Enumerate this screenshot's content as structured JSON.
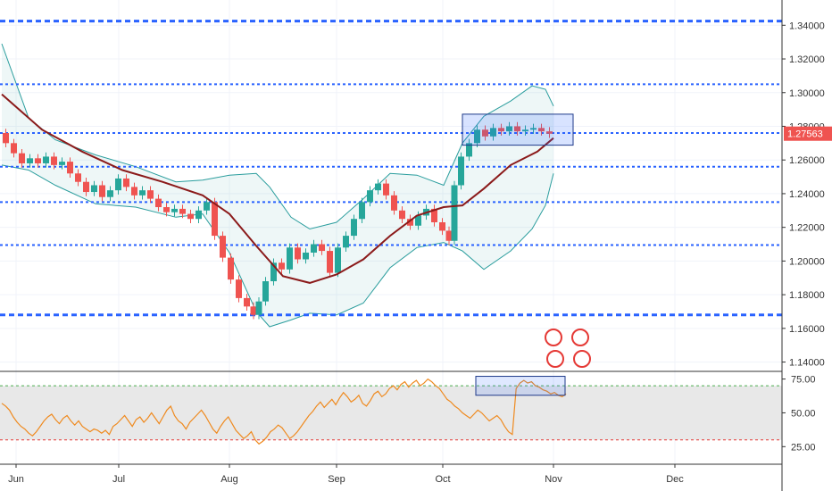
{
  "chart_data": [
    {
      "type": "candlestick",
      "title": "",
      "xlabel": "",
      "ylabel": "",
      "ylim": [
        1.135,
        1.355
      ],
      "x_ticks": [
        "Jun",
        "Jul",
        "Aug",
        "Sep",
        "Oct",
        "Nov",
        "Dec"
      ],
      "y_ticks": [
        "1.34000",
        "1.32000",
        "1.30000",
        "1.28000",
        "1.26000",
        "1.24000",
        "1.22000",
        "1.20000",
        "1.18000",
        "1.16000",
        "1.14000"
      ],
      "last_price": "1.27563",
      "indicators": [
        "Bollinger Bands",
        "Moving Average"
      ],
      "horizontal_levels": [
        1.3425,
        1.305,
        1.276,
        1.256,
        1.235,
        1.2095,
        1.168
      ],
      "series": [
        {
          "name": "",
          "kind": "close",
          "points": [
            [
              0,
              1.276
            ],
            [
              3,
              1.27
            ],
            [
              6,
              1.264
            ],
            [
              9,
              1.258
            ],
            [
              12,
              1.261
            ],
            [
              15,
              1.258
            ],
            [
              18,
              1.262
            ],
            [
              21,
              1.257
            ],
            [
              24,
              1.259
            ],
            [
              27,
              1.252
            ],
            [
              30,
              1.247
            ],
            [
              33,
              1.241
            ],
            [
              36,
              1.245
            ],
            [
              39,
              1.238
            ],
            [
              42,
              1.242
            ],
            [
              45,
              1.249
            ],
            [
              48,
              1.244
            ],
            [
              51,
              1.239
            ],
            [
              54,
              1.242
            ],
            [
              57,
              1.237
            ],
            [
              60,
              1.232
            ],
            [
              63,
              1.229
            ],
            [
              66,
              1.231
            ],
            [
              69,
              1.228
            ],
            [
              72,
              1.225
            ],
            [
              75,
              1.23
            ],
            [
              78,
              1.235
            ],
            [
              81,
              1.215
            ],
            [
              84,
              1.202
            ],
            [
              87,
              1.189
            ],
            [
              90,
              1.178
            ],
            [
              93,
              1.173
            ],
            [
              95,
              1.168
            ],
            [
              97,
              1.176
            ],
            [
              100,
              1.188
            ],
            [
              103,
              1.199
            ],
            [
              106,
              1.195
            ],
            [
              109,
              1.208
            ],
            [
              112,
              1.201
            ],
            [
              115,
              1.205
            ],
            [
              118,
              1.21
            ],
            [
              121,
              1.206
            ],
            [
              124,
              1.193
            ],
            [
              127,
              1.208
            ],
            [
              130,
              1.215
            ],
            [
              133,
              1.225
            ],
            [
              136,
              1.235
            ],
            [
              139,
              1.242
            ],
            [
              142,
              1.246
            ],
            [
              145,
              1.239
            ],
            [
              148,
              1.23
            ],
            [
              151,
              1.225
            ],
            [
              154,
              1.221
            ],
            [
              157,
              1.227
            ],
            [
              160,
              1.231
            ],
            [
              163,
              1.223
            ],
            [
              166,
              1.218
            ],
            [
              168,
              1.212
            ],
            [
              170,
              1.245
            ],
            [
              173,
              1.262
            ],
            [
              176,
              1.27
            ],
            [
              179,
              1.278
            ],
            [
              182,
              1.274
            ],
            [
              185,
              1.279
            ],
            [
              188,
              1.277
            ],
            [
              191,
              1.28
            ],
            [
              194,
              1.277
            ],
            [
              197,
              1.278
            ],
            [
              200,
              1.279
            ],
            [
              203,
              1.277
            ],
            [
              206,
              1.2756
            ]
          ]
        },
        {
          "name": "",
          "kind": "moving-average",
          "points": [
            [
              0,
              1.299
            ],
            [
              15,
              1.278
            ],
            [
              30,
              1.265
            ],
            [
              45,
              1.254
            ],
            [
              60,
              1.247
            ],
            [
              75,
              1.239
            ],
            [
              85,
              1.228
            ],
            [
              95,
              1.209
            ],
            [
              105,
              1.191
            ],
            [
              115,
              1.187
            ],
            [
              125,
              1.192
            ],
            [
              135,
              1.201
            ],
            [
              145,
              1.215
            ],
            [
              155,
              1.227
            ],
            [
              165,
              1.232
            ],
            [
              172,
              1.233
            ],
            [
              180,
              1.243
            ],
            [
              190,
              1.257
            ],
            [
              200,
              1.265
            ],
            [
              206,
              1.273
            ]
          ]
        },
        {
          "name": "",
          "kind": "bollinger-upper",
          "points": [
            [
              0,
              1.329
            ],
            [
              10,
              1.285
            ],
            [
              20,
              1.272
            ],
            [
              35,
              1.263
            ],
            [
              50,
              1.256
            ],
            [
              65,
              1.247
            ],
            [
              75,
              1.248
            ],
            [
              85,
              1.251
            ],
            [
              95,
              1.252
            ],
            [
              100,
              1.244
            ],
            [
              108,
              1.226
            ],
            [
              115,
              1.219
            ],
            [
              125,
              1.223
            ],
            [
              135,
              1.237
            ],
            [
              145,
              1.252
            ],
            [
              155,
              1.251
            ],
            [
              165,
              1.245
            ],
            [
              172,
              1.27
            ],
            [
              180,
              1.286
            ],
            [
              190,
              1.295
            ],
            [
              198,
              1.304
            ],
            [
              203,
              1.302
            ],
            [
              206,
              1.292
            ]
          ]
        },
        {
          "name": "",
          "kind": "bollinger-lower",
          "points": [
            [
              0,
              1.257
            ],
            [
              10,
              1.254
            ],
            [
              20,
              1.245
            ],
            [
              35,
              1.234
            ],
            [
              50,
              1.232
            ],
            [
              65,
              1.226
            ],
            [
              75,
              1.228
            ],
            [
              85,
              1.205
            ],
            [
              95,
              1.17
            ],
            [
              100,
              1.161
            ],
            [
              108,
              1.165
            ],
            [
              115,
              1.169
            ],
            [
              125,
              1.168
            ],
            [
              135,
              1.175
            ],
            [
              145,
              1.196
            ],
            [
              155,
              1.208
            ],
            [
              165,
              1.211
            ],
            [
              172,
              1.206
            ],
            [
              180,
              1.195
            ],
            [
              190,
              1.206
            ],
            [
              198,
              1.219
            ],
            [
              203,
              1.233
            ],
            [
              206,
              1.252
            ]
          ]
        }
      ]
    },
    {
      "type": "line",
      "title": "",
      "ylim": [
        12,
        80
      ],
      "y_ticks": [
        "75.00",
        "50.00",
        "25.00"
      ],
      "reference_levels": [
        70,
        30
      ],
      "series": [
        {
          "name": "",
          "values": [
            57,
            55,
            52,
            47,
            43,
            40,
            38,
            35,
            33,
            36,
            40,
            44,
            47,
            49,
            45,
            42,
            46,
            48,
            44,
            41,
            44,
            40,
            38,
            36,
            38,
            37,
            35,
            37,
            34,
            40,
            42,
            45,
            48,
            44,
            40,
            45,
            47,
            43,
            46,
            50,
            46,
            42,
            47,
            52,
            55,
            48,
            44,
            42,
            38,
            43,
            46,
            49,
            52,
            48,
            43,
            38,
            35,
            40,
            44,
            47,
            42,
            37,
            34,
            31,
            33,
            36,
            30,
            27,
            29,
            32,
            36,
            38,
            41,
            39,
            35,
            31,
            33,
            36,
            40,
            44,
            48,
            51,
            55,
            58,
            54,
            57,
            60,
            56,
            61,
            65,
            62,
            58,
            60,
            63,
            57,
            55,
            59,
            64,
            66,
            62,
            64,
            68,
            70,
            67,
            71,
            73,
            69,
            72,
            74,
            70,
            72,
            75,
            73,
            70,
            68,
            64,
            60,
            58,
            55,
            53,
            50,
            48,
            46,
            49,
            52,
            50,
            47,
            44,
            46,
            48,
            45,
            40,
            36,
            34,
            68,
            72,
            74,
            72,
            73,
            70,
            69,
            67,
            66,
            64,
            65,
            63,
            62,
            64
          ]
        }
      ]
    }
  ]
}
